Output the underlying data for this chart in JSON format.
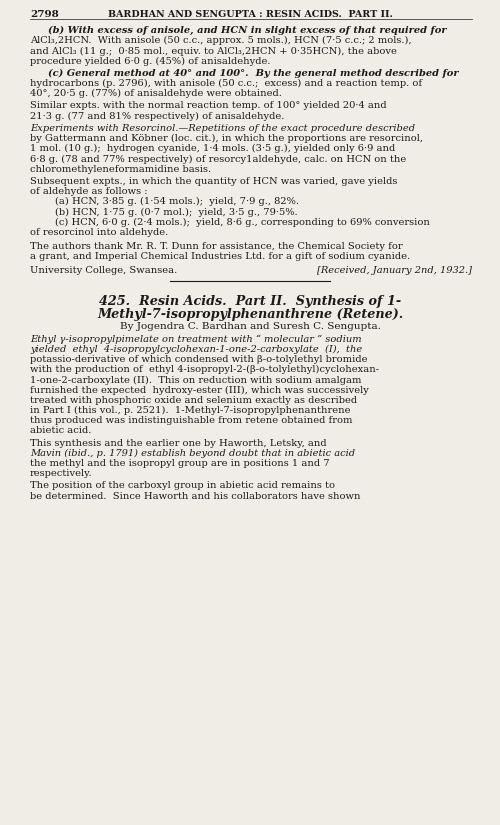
{
  "page_number": "2798",
  "header": "BARDHAN AND SENGUPTA : RESIN ACIDS.  PART II.",
  "background_color": "#f0ede6",
  "text_color": "#1a1a1a",
  "lm": 30,
  "rm": 472,
  "indent": 48,
  "list_indent": 55,
  "fs_body": 7.15,
  "fs_header": 6.8,
  "fs_title": 9.2,
  "fs_authors": 7.5,
  "leading": 10.2,
  "lines_section_b": [
    "(b) With excess of anisole, and HCN in slight excess of that required for",
    "AlCl₃,2HCN.  With anisole (50 c.c., approx. 5 mols.), HCN (7·5 c.c.; 2 mols.),",
    "and AlCl₃ (11 g.;  0·85 mol., equiv. to AlCl₃,2HCN + 0·35HCN), the above",
    "procedure yielded 6·0 g. (45%) of anisaldehyde."
  ],
  "lines_section_c": [
    "(c) General method at 40° and 100°.  By the general method described for",
    "hydrocarbons (p. 2796), with anisole (50 c.c.;  excess) and a reaction temp. of",
    "40°, 20·5 g. (77%) of anisaldehyde were obtained."
  ],
  "lines_similar": [
    "Similar expts. with the normal reaction temp. of 100° yielded 20·4 and",
    "21·3 g. (77 and 81% respectively) of anisaldehyde."
  ],
  "lines_resorcinol": [
    "Experiments with Resorcinol.—Repetitions of the exact procedure described",
    "by Gattermann and Köbner (loc. cit.), in which the proportions are resorcinol,",
    "1 mol. (10 g.);  hydrogen cyanide, 1·4 mols. (3·5 g.), yielded only 6·9 and",
    "6·8 g. (78 and 77% respectively) of resorcy1aldehyde, calc. on HCN on the",
    "chloromethyleneformamidine basis."
  ],
  "lines_subsequent": [
    "Subsequent expts., in which the quantity of HCN was varied, gave yields",
    "of aldehyde as follows :"
  ],
  "list_items": [
    "(a) HCN, 3·85 g. (1·54 mols.);  yield, 7·9 g., 82%.",
    "(b) HCN, 1·75 g. (0·7 mol.);  yield, 3·5 g., 79·5%.",
    "(c) HCN, 6·0 g. (2·4 mols.);  yield, 8·6 g., corresponding to 69% conversion",
    "of resorcinol into aldehyde."
  ],
  "lines_thanks": [
    "The authors thank Mr. R. T. Dunn for assistance, the Chemical Society for",
    "a grant, and Imperial Chemical Industries Ltd. for a gift of sodium cyanide."
  ],
  "affiliation_left": "University College, Swansea.",
  "affiliation_right": "[Received, January 2nd, 1932.]",
  "title_line1": "425.  Resin Acids.  Part II.  Synthesis of 1-",
  "title_line2": "Methyl-7-isopropylphenanthrene (Retene).",
  "authors_line": "By Jogendra C. Bardhan and Suresh C. Sengupta.",
  "abstract_lines": [
    [
      "Ethyl γ-isopropylpimelate on treatment with “ molecular ” sodium",
      "italic"
    ],
    [
      "yielded  ethyl  4-isopropylcyclohexan-1-one-2-carboxylate  (I),  the",
      "italic"
    ],
    [
      "potassio-derivative of which condensed with β-o-tolylethyl bromide",
      "normal"
    ],
    [
      "with the production of  ethyl 4-isopropyl-2-(β-o-tolylethyl)cyclohexan-",
      "normal"
    ],
    [
      "1-one-2-carboxylate (II).  This on reduction with sodium amalgam",
      "normal"
    ],
    [
      "furnished the expected  hydroxy-ester (III), which was successively",
      "normal"
    ],
    [
      "treated with phosphoric oxide and selenium exactly as described",
      "normal"
    ],
    [
      "in Part I (this vol., p. 2521).  1-Methyl-7-isopropylphenanthrene",
      "normal"
    ],
    [
      "thus produced was indistinguishable from retene obtained from",
      "normal"
    ],
    [
      "abietic acid.",
      "normal"
    ]
  ],
  "para2_lines": [
    [
      "This synthesis and the earlier one by Haworth, Letsky, and",
      "normal",
      30
    ],
    [
      "Mavin (ibid., p. 1791) establish beyond doubt that in abietic acid",
      "italic",
      30
    ],
    [
      "the methyl and the isopropyl group are in positions 1 and 7",
      "normal",
      30
    ],
    [
      "respectively.",
      "normal",
      30
    ]
  ],
  "para3_lines": [
    "The position of the carboxyl group in abietic acid remains to",
    "be determined.  Since Haworth and his collaborators have shown"
  ]
}
